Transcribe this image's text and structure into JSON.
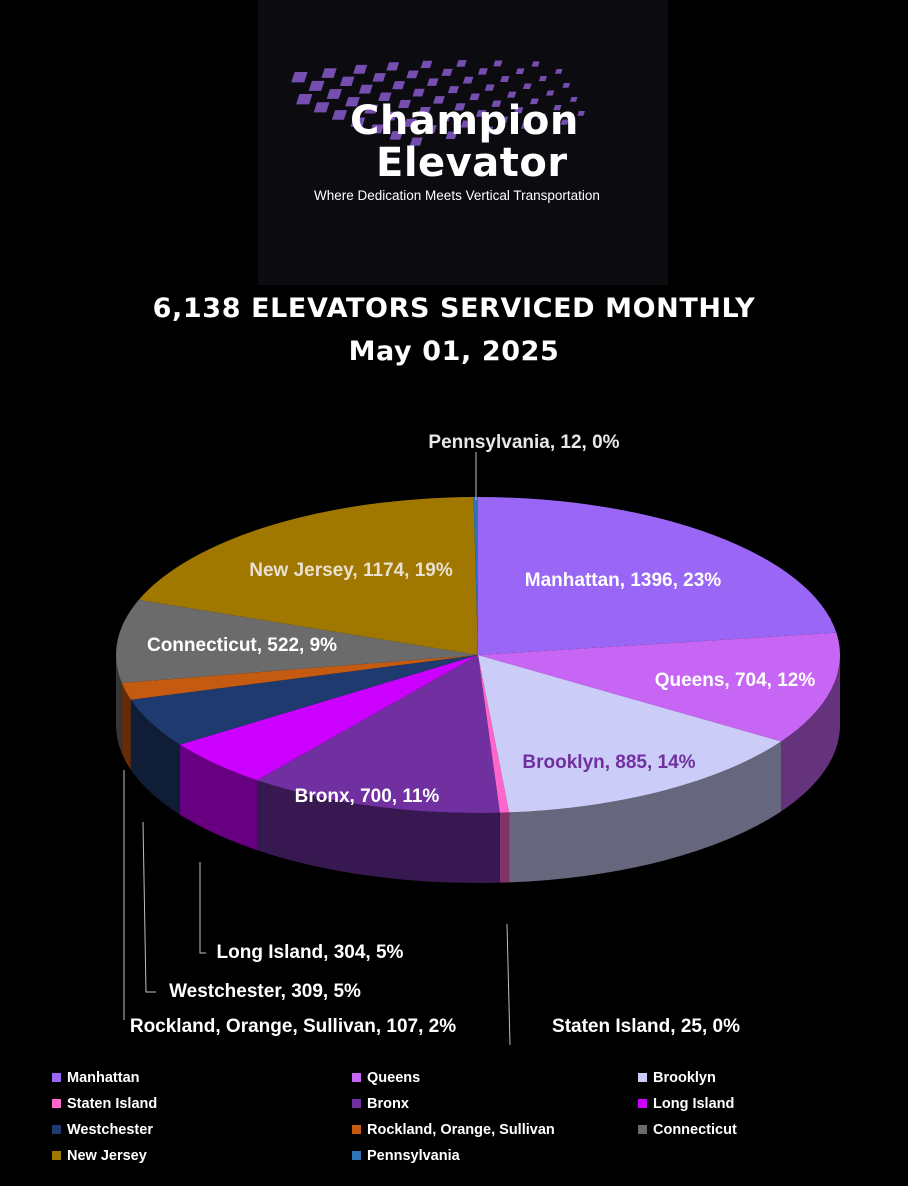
{
  "logo": {
    "line1": "Champion",
    "line2": "Elevator",
    "tagline": "Where Dedication Meets Vertical Transportation",
    "brand_color": "#7b52b9",
    "icon": "checkered-flag-icon"
  },
  "chart_data": {
    "type": "pie",
    "title": "6,138 ELEVATORS SERVICED MONTHLY",
    "subtitle": "May 01, 2025",
    "legend_placement": "bottom",
    "series": [
      {
        "name": "Manhattan",
        "value": 1396,
        "percent": "23%",
        "color": "#9966f5",
        "label": "Manhattan, 1396, 23%",
        "label_color": "#ffffff"
      },
      {
        "name": "Queens",
        "value": 704,
        "percent": "12%",
        "color": "#c766f5",
        "label": "Queens, 704, 12%",
        "label_color": "#ffffff"
      },
      {
        "name": "Brooklyn",
        "value": 885,
        "percent": "14%",
        "color": "#ccccf8",
        "label": "Brooklyn, 885, 14%",
        "label_color": "#7030a0"
      },
      {
        "name": "Staten Island",
        "value": 25,
        "percent": "0%",
        "color": "#ff66cc",
        "label": "Staten Island, 25, 0%",
        "label_color": "#ffffff"
      },
      {
        "name": "Bronx",
        "value": 700,
        "percent": "11%",
        "color": "#7030a0",
        "label": "Bronx, 700, 11%",
        "label_color": "#ffffff"
      },
      {
        "name": "Long Island",
        "value": 304,
        "percent": "5%",
        "color": "#cc00ff",
        "label": "Long Island, 304, 5%",
        "label_color": "#ffffff"
      },
      {
        "name": "Westchester",
        "value": 309,
        "percent": "5%",
        "color": "#1f3a6e",
        "label": "Westchester, 309, 5%",
        "label_color": "#ffffff"
      },
      {
        "name": "Rockland, Orange, Sullivan",
        "value": 107,
        "percent": "2%",
        "color": "#c55a11",
        "label": "Rockland, Orange, Sullivan, 107, 2%",
        "label_color": "#ffffff"
      },
      {
        "name": "Connecticut",
        "value": 522,
        "percent": "9%",
        "color": "#6b6b6b",
        "label": "Connecticut, 522, 9%",
        "label_color": "#ffffff"
      },
      {
        "name": "New Jersey",
        "value": 1174,
        "percent": "19%",
        "color": "#a07800",
        "label": "New Jersey, 1174, 19%",
        "label_color": "#e8e0d0"
      },
      {
        "name": "Pennsylvania",
        "value": 12,
        "percent": "0%",
        "color": "#2e75b6",
        "label": "Pennsylvania, 12, 0%",
        "label_color": "#e8e8e8"
      }
    ]
  }
}
